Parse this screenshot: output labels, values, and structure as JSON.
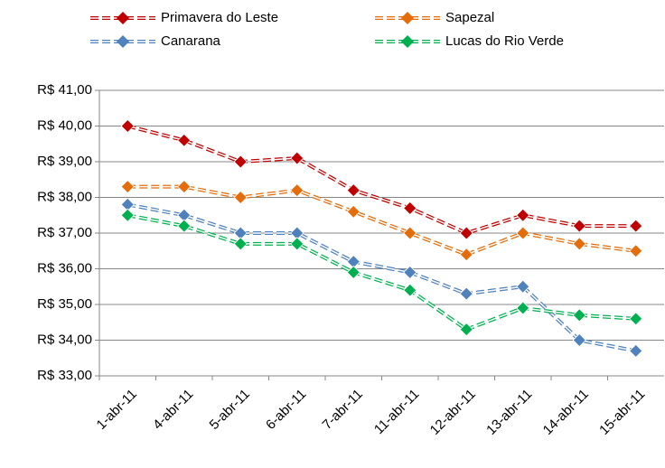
{
  "chart_data": {
    "type": "line",
    "categories": [
      "1-abr-11",
      "4-abr-11",
      "5-abr-11",
      "6-abr-11",
      "7-abr-11",
      "11-abr-11",
      "12-abr-11",
      "13-abr-11",
      "14-abr-11",
      "15-abr-11"
    ],
    "series": [
      {
        "name": "Primavera do Leste",
        "color": "#c00000",
        "values": [
          40.0,
          39.6,
          39.0,
          39.1,
          38.2,
          37.7,
          37.0,
          37.5,
          37.2,
          37.2
        ]
      },
      {
        "name": "Sapezal",
        "color": "#e46c0a",
        "values": [
          38.3,
          38.3,
          38.0,
          38.2,
          37.6,
          37.0,
          36.4,
          37.0,
          36.7,
          36.5
        ]
      },
      {
        "name": "Canarana",
        "color": "#4f81bd",
        "values": [
          37.8,
          37.5,
          37.0,
          37.0,
          36.2,
          35.9,
          35.3,
          35.5,
          34.0,
          33.7
        ]
      },
      {
        "name": "Lucas do Rio Verde",
        "color": "#00b050",
        "values": [
          37.5,
          37.2,
          36.7,
          36.7,
          35.9,
          35.4,
          34.3,
          34.9,
          34.7,
          34.6
        ]
      }
    ],
    "ylim": [
      33,
      41
    ],
    "yticks": [
      {
        "value": 33,
        "label": "R$ 33,00"
      },
      {
        "value": 34,
        "label": "R$ 34,00"
      },
      {
        "value": 35,
        "label": "R$ 35,00"
      },
      {
        "value": 36,
        "label": "R$ 36,00"
      },
      {
        "value": 37,
        "label": "R$ 37,00"
      },
      {
        "value": 38,
        "label": "R$ 38,00"
      },
      {
        "value": 39,
        "label": "R$ 39,00"
      },
      {
        "value": 40,
        "label": "R$ 40,00"
      },
      {
        "value": 41,
        "label": "R$ 41,00"
      }
    ],
    "grid": true
  }
}
